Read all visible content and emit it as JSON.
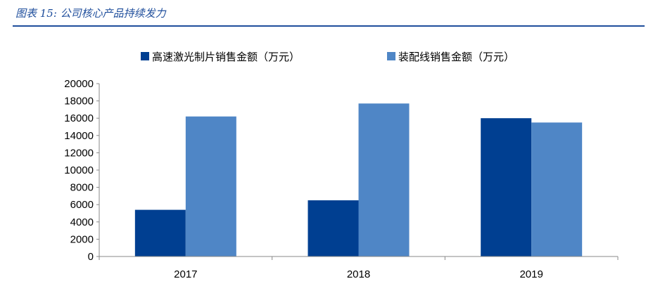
{
  "figure": {
    "caption": "图表 15:  公司核心产品持续发力"
  },
  "chart_data": {
    "type": "bar",
    "categories": [
      "2017",
      "2018",
      "2019"
    ],
    "series": [
      {
        "name": "高速激光制片销售金额（万元）",
        "color": "#003f91",
        "values": [
          5400,
          6500,
          16000
        ]
      },
      {
        "name": "装配线销售金额（万元）",
        "color": "#4f86c6",
        "values": [
          16200,
          17700,
          15500
        ]
      }
    ],
    "ylim": [
      0,
      20000
    ],
    "yticks": [
      0,
      2000,
      4000,
      6000,
      8000,
      10000,
      12000,
      14000,
      16000,
      18000,
      20000
    ],
    "grid": false,
    "legend": "top"
  }
}
